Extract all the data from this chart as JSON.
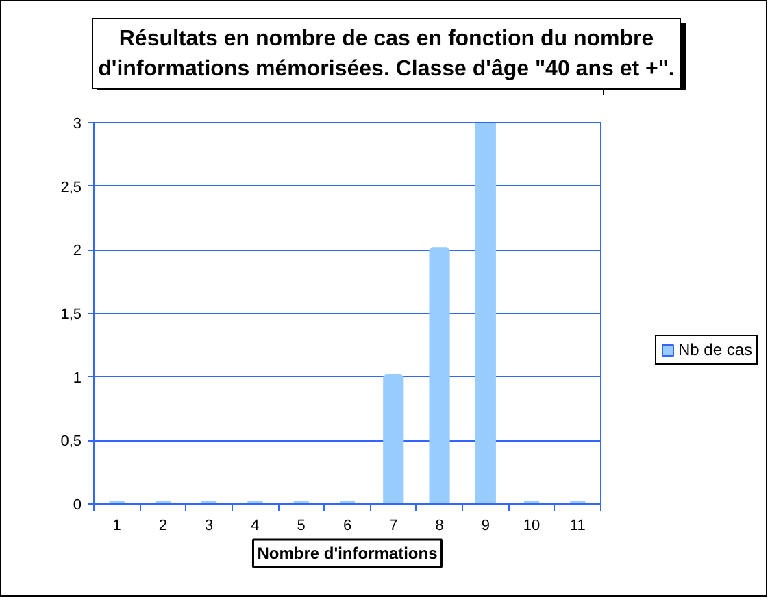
{
  "chart_data": {
    "type": "bar",
    "title": "Résultats en nombre de cas en fonction du nombre d'informations mémorisées. Classe d'âge \"40 ans et +\".",
    "xlabel": "Nombre d'informations",
    "categories": [
      "1",
      "2",
      "3",
      "4",
      "5",
      "6",
      "7",
      "8",
      "9",
      "10",
      "11"
    ],
    "series": [
      {
        "name": "Nb de cas",
        "color": "#99ccff",
        "values": [
          0,
          0,
          0,
          0,
          0,
          0,
          1,
          2,
          3,
          0,
          0
        ]
      }
    ],
    "ylim": [
      0,
      3
    ],
    "yticks": [
      0,
      {
        "value": 0.5,
        "label": "0,5"
      },
      1,
      {
        "value": 1.5,
        "label": "1,5"
      },
      2,
      {
        "value": 2.5,
        "label": "2,5"
      },
      3
    ],
    "grid": "y",
    "legend": "right"
  }
}
